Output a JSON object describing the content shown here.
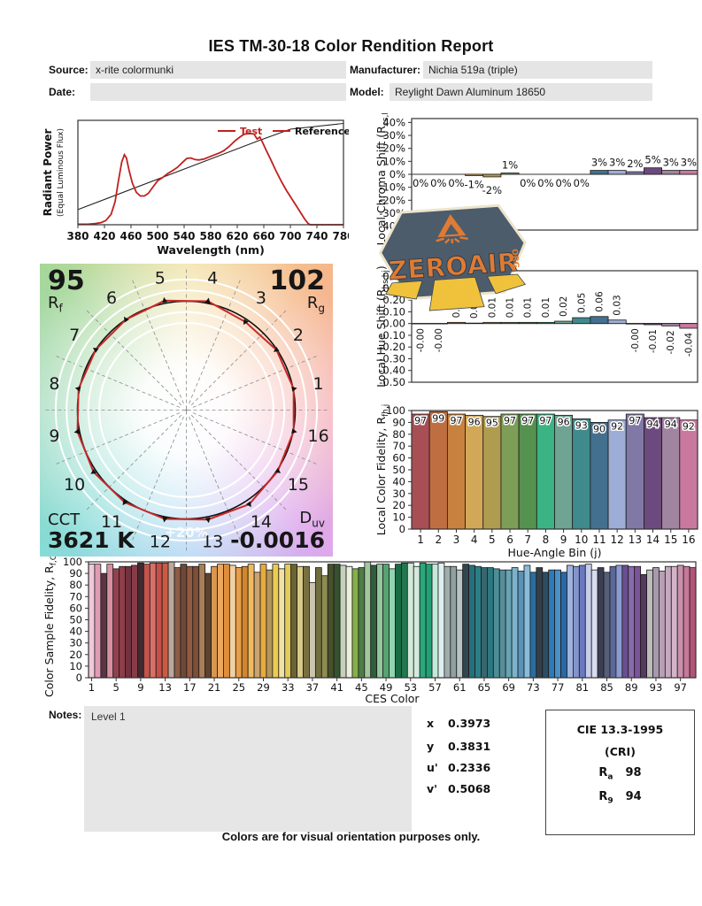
{
  "report": {
    "title": "IES TM-30-18 Color Rendition Report",
    "fields": {
      "source_label": "Source:",
      "source_value": "x-rite colormunki",
      "manufacturer_label": "Manufacturer:",
      "manufacturer_value": "Nichia 519a (triple)",
      "date_label": "Date:",
      "date_value": "",
      "model_label": "Model:",
      "model_value": "Reylight Dawn Aluminum 18650"
    },
    "footer": "Colors are for visual orientation purposes only."
  },
  "watermark": {
    "text": "ZEROAIR",
    "suffix": "ORG",
    "bg_color": "#4d5c6b",
    "accent_color": "#e07b33",
    "beam_color": "#f0c23c",
    "border_color": "#ede4cc"
  },
  "notes": {
    "label": "Notes:",
    "value": "Level 1"
  },
  "chromaticity": {
    "rows": [
      [
        "x",
        "0.3973"
      ],
      [
        "y",
        "0.3831"
      ],
      [
        "u'",
        "0.2336"
      ],
      [
        "v'",
        "0.5068"
      ]
    ]
  },
  "cri_box": {
    "title": "CIE 13.3-1995",
    "subtitle": "(CRI)",
    "ra_pre": "R",
    "ra_sub": "a",
    "ra": "98",
    "r9_pre": "R",
    "r9_sub": "9",
    "r9": "94"
  },
  "vector_graphic": {
    "rf": "95",
    "rf_pre": "R",
    "rf_sub": "f",
    "rg": "102",
    "rg_pre": "R",
    "rg_sub": "g",
    "cct_label": "CCT",
    "cct": "3621 K",
    "duv_pre": "D",
    "duv_sub": "uv",
    "duv": "-0.0016",
    "ring_label": "+20%",
    "bin_labels": [
      "1",
      "2",
      "3",
      "4",
      "5",
      "6",
      "7",
      "8",
      "9",
      "10",
      "11",
      "12",
      "13",
      "14",
      "15",
      "16"
    ],
    "test_radii": [
      1.005,
      0.995,
      0.975,
      1.02,
      1.025,
      1.0,
      1.0,
      1.01,
      1.02,
      1.025,
      1.02,
      1.02,
      1.025,
      1.04,
      1.01,
      1.005
    ],
    "test_color": "#c82828",
    "reference_color": "#111111",
    "wheel_colors": [
      "#f2e0a0",
      "#f5b88a",
      "#f5aeb4",
      "#dda8ec",
      "#a8d2f2",
      "#86dbd6",
      "#a5dcc0",
      "#a6d79a"
    ]
  },
  "hue_bin_colors": [
    "#a84e55",
    "#bf6e42",
    "#c8823f",
    "#d2a858",
    "#b09c4e",
    "#7d9e56",
    "#55914f",
    "#3cb384",
    "#6fa392",
    "#3f8a8c",
    "#44708f",
    "#9dadd6",
    "#8079a6",
    "#6d4a7d",
    "#a184a0",
    "#c9799d"
  ],
  "chart_data": [
    {
      "id": "spd",
      "type": "line",
      "xlabel": "Wavelength (nm)",
      "ylabel": "Radiant Power",
      "ylabel2": "(Equal Luminous Flux)",
      "xlim": [
        380,
        780
      ],
      "ylim": [
        0,
        1
      ],
      "xticks": [
        380,
        420,
        460,
        500,
        540,
        580,
        620,
        660,
        700,
        740,
        780
      ],
      "legend": [
        "Test",
        "Reference"
      ],
      "test_color": "#c02020",
      "reference_color": "#222222",
      "series": [
        {
          "name": "Test",
          "points": [
            [
              380,
              0.005
            ],
            [
              395,
              0.005
            ],
            [
              405,
              0.01
            ],
            [
              415,
              0.02
            ],
            [
              422,
              0.04
            ],
            [
              430,
              0.1
            ],
            [
              436,
              0.22
            ],
            [
              441,
              0.42
            ],
            [
              446,
              0.6
            ],
            [
              450,
              0.67
            ],
            [
              453,
              0.64
            ],
            [
              457,
              0.52
            ],
            [
              462,
              0.4
            ],
            [
              468,
              0.31
            ],
            [
              474,
              0.275
            ],
            [
              480,
              0.275
            ],
            [
              486,
              0.3
            ],
            [
              493,
              0.36
            ],
            [
              500,
              0.42
            ],
            [
              507,
              0.45
            ],
            [
              515,
              0.49
            ],
            [
              523,
              0.52
            ],
            [
              530,
              0.55
            ],
            [
              538,
              0.6
            ],
            [
              544,
              0.635
            ],
            [
              550,
              0.64
            ],
            [
              556,
              0.625
            ],
            [
              562,
              0.62
            ],
            [
              570,
              0.63
            ],
            [
              578,
              0.65
            ],
            [
              586,
              0.67
            ],
            [
              594,
              0.69
            ],
            [
              600,
              0.71
            ],
            [
              608,
              0.75
            ],
            [
              616,
              0.8
            ],
            [
              624,
              0.84
            ],
            [
              630,
              0.865
            ],
            [
              638,
              0.875
            ],
            [
              645,
              0.87
            ],
            [
              650,
              0.82
            ],
            [
              654,
              0.84
            ],
            [
              658,
              0.79
            ],
            [
              663,
              0.72
            ],
            [
              670,
              0.63
            ],
            [
              678,
              0.52
            ],
            [
              686,
              0.42
            ],
            [
              694,
              0.33
            ],
            [
              702,
              0.25
            ],
            [
              710,
              0.17
            ],
            [
              716,
              0.11
            ],
            [
              722,
              0.05
            ],
            [
              727,
              0.01
            ],
            [
              730,
              0.0
            ],
            [
              745,
              0.0
            ],
            [
              780,
              0.0
            ]
          ]
        },
        {
          "name": "Reference",
          "points": [
            [
              380,
              0.145
            ],
            [
              650,
              0.8
            ],
            [
              700,
              0.915
            ],
            [
              780,
              0.97
            ]
          ]
        }
      ]
    },
    {
      "id": "local_chroma_shift",
      "type": "bar",
      "ylabel_pre": "Local Chroma Shift (R",
      "ylabel_sub": "cs,hj",
      "ylabel_post": ")",
      "categories": [
        1,
        2,
        3,
        4,
        5,
        6,
        7,
        8,
        9,
        10,
        11,
        12,
        13,
        14,
        15,
        16
      ],
      "values": [
        0,
        0,
        0,
        -1,
        -2,
        1,
        0,
        0,
        0,
        0,
        3,
        3,
        2,
        5,
        3,
        3
      ],
      "labels": [
        "0%",
        "0%",
        "0%",
        "-1%",
        "-2%",
        "1%",
        "0%",
        "0%",
        "0%",
        "0%",
        "3%",
        "3%",
        "2%",
        "5%",
        "3%",
        "3%"
      ],
      "ylim": [
        -43,
        43
      ],
      "ytick_vals": [
        40,
        30,
        20,
        10,
        0,
        -10,
        -20,
        -30,
        -40
      ],
      "ytick_labels": [
        "40%",
        "30%",
        "20%",
        "10%",
        "0%",
        "-10%",
        "-20%",
        "-30%",
        "-40%"
      ]
    },
    {
      "id": "local_hue_shift",
      "type": "bar",
      "ylabel_pre": "Local Hue Shift (R",
      "ylabel_sub": "hs,hj",
      "ylabel_post": ")",
      "categories": [
        1,
        2,
        3,
        4,
        5,
        6,
        7,
        8,
        9,
        10,
        11,
        12,
        13,
        14,
        15,
        16
      ],
      "values": [
        -0.003,
        -0.003,
        0.01,
        0.004,
        0.01,
        0.01,
        0.01,
        0.01,
        0.02,
        0.05,
        0.06,
        0.03,
        -0.004,
        -0.01,
        -0.02,
        -0.04
      ],
      "labels": [
        "-0.00",
        "-0.00",
        "0.01",
        "0.00",
        "0.01",
        "0.01",
        "0.01",
        "0.01",
        "0.02",
        "0.05",
        "0.06",
        "0.03",
        "-0.00",
        "-0.01",
        "-0.02",
        "-0.04"
      ],
      "ylim": [
        -0.5,
        0.45
      ],
      "ytick_vals": [
        0.4,
        0.3,
        0.2,
        0.1,
        0.0,
        -0.1,
        -0.2,
        -0.3,
        -0.4,
        -0.5
      ],
      "ytick_labels": [
        "0.40",
        "0.30",
        "0.20",
        "0.10",
        "0.00",
        "-0.10",
        "-0.20",
        "-0.30",
        "-0.40",
        "-0.50"
      ]
    },
    {
      "id": "local_color_fidelity",
      "type": "bar",
      "xlabel": "Hue-Angle Bin (j)",
      "ylabel_pre": "Local Color Fidelity, R",
      "ylabel_sub": "fh,j",
      "ylabel_post": "",
      "categories": [
        1,
        2,
        3,
        4,
        5,
        6,
        7,
        8,
        9,
        10,
        11,
        12,
        13,
        14,
        15,
        16
      ],
      "values": [
        97,
        99,
        97,
        96,
        95,
        97,
        97,
        97,
        96,
        93,
        90,
        92,
        97,
        94,
        94,
        92
      ],
      "labels": [
        "97",
        "99",
        "97",
        "96",
        "95",
        "97",
        "97",
        "97",
        "96",
        "93",
        "90",
        "92",
        "97",
        "94",
        "94",
        "92"
      ],
      "ylim": [
        0,
        100
      ],
      "ytick_vals": [
        100,
        90,
        80,
        70,
        60,
        50,
        40,
        30,
        20,
        10,
        0
      ],
      "ytick_labels": [
        "100",
        "90",
        "80",
        "70",
        "60",
        "50",
        "40",
        "30",
        "20",
        "10",
        "0"
      ]
    },
    {
      "id": "ces_fidelity",
      "type": "bar",
      "xlabel": "CES Color",
      "ylabel_pre": "Color Sample Fidelity, R",
      "ylabel_sub": "f,CESi",
      "ylabel_post": "",
      "xticks": [
        1,
        5,
        9,
        13,
        17,
        21,
        25,
        29,
        33,
        37,
        41,
        45,
        49,
        53,
        57,
        61,
        65,
        69,
        73,
        77,
        81,
        85,
        89,
        93,
        97
      ],
      "values": [
        98,
        98,
        90,
        98,
        94,
        96,
        96,
        97,
        99,
        98,
        99,
        99,
        99,
        100,
        95,
        98,
        96,
        96,
        98,
        90,
        96,
        98,
        98,
        97,
        95,
        96,
        98,
        91,
        98,
        93,
        98,
        94,
        98,
        98,
        96,
        96,
        82,
        95,
        88,
        98,
        98,
        97,
        96,
        94,
        95,
        100,
        97,
        98,
        98,
        94,
        98,
        99,
        99,
        96,
        99,
        98,
        98,
        99,
        96,
        96,
        93,
        98,
        97,
        96,
        95,
        95,
        94,
        93,
        93,
        95,
        92,
        97,
        91,
        95,
        91,
        93,
        93,
        91,
        97,
        96,
        97,
        98,
        93,
        95,
        91,
        96,
        97,
        97,
        96,
        96,
        89,
        93,
        95,
        92,
        96,
        96,
        97,
        96,
        95
      ],
      "colors": [
        "#f0c8d8",
        "#e09cb4",
        "#5c3444",
        "#d890a0",
        "#94404e",
        "#8e3e48",
        "#703240",
        "#883c48",
        "#402a30",
        "#c4544c",
        "#d87068",
        "#c45048",
        "#cc5a42",
        "#bca89c",
        "#8c5c44",
        "#6e4836",
        "#925a40",
        "#7e4e36",
        "#a87e58",
        "#5e4230",
        "#d8964e",
        "#eca85c",
        "#e08e3c",
        "#f2d0a4",
        "#e89e48",
        "#d2862e",
        "#f0ba5c",
        "#c8a470",
        "#e8aa3e",
        "#b2965a",
        "#eccb4e",
        "#f0e2a2",
        "#e4cc5a",
        "#6a6432",
        "#d8ca88",
        "#787040",
        "#cac4b0",
        "#706e3e",
        "#8e8c52",
        "#48502a",
        "#35522f",
        "#c6d1bb",
        "#eaefde",
        "#86b049",
        "#4d7c47",
        "#a0c89b",
        "#2f5e3d",
        "#91c89f",
        "#58a372",
        "#90d5af",
        "#1a6b44",
        "#217850",
        "#d4ead8",
        "#d4e9df",
        "#2aa87c",
        "#23a076",
        "#c2ead9",
        "#dfeef0",
        "#9fadad",
        "#8fa0a2",
        "#b6c4c4",
        "#32444e",
        "#25707a",
        "#2a7e86",
        "#37666e",
        "#2d7880",
        "#4d8e96",
        "#568e9a",
        "#68a4b4",
        "#7ab4cc",
        "#5a92b8",
        "#88bcd8",
        "#2a6e9e",
        "#353f49",
        "#2d4d60",
        "#2d7ab8",
        "#4a90c8",
        "#2868a8",
        "#9fb4dc",
        "#8494cc",
        "#6a7ac0",
        "#c8cdeb",
        "#d8dcf0",
        "#3a3f52",
        "#555f7a",
        "#5c6899",
        "#8c9cd0",
        "#6a4e90",
        "#8a6aae",
        "#7a5598",
        "#56395f",
        "#bcbcbc",
        "#a898ac",
        "#b8a0b4",
        "#c8a8c0",
        "#d4b4c8",
        "#c890ac",
        "#c87898",
        "#b05578"
      ],
      "ylim": [
        0,
        100
      ],
      "ytick_vals": [
        100,
        90,
        80,
        70,
        60,
        50,
        40,
        30,
        20,
        10,
        0
      ],
      "ytick_labels": [
        "100",
        "90",
        "80",
        "70",
        "60",
        "50",
        "40",
        "30",
        "20",
        "10",
        "0"
      ]
    }
  ]
}
